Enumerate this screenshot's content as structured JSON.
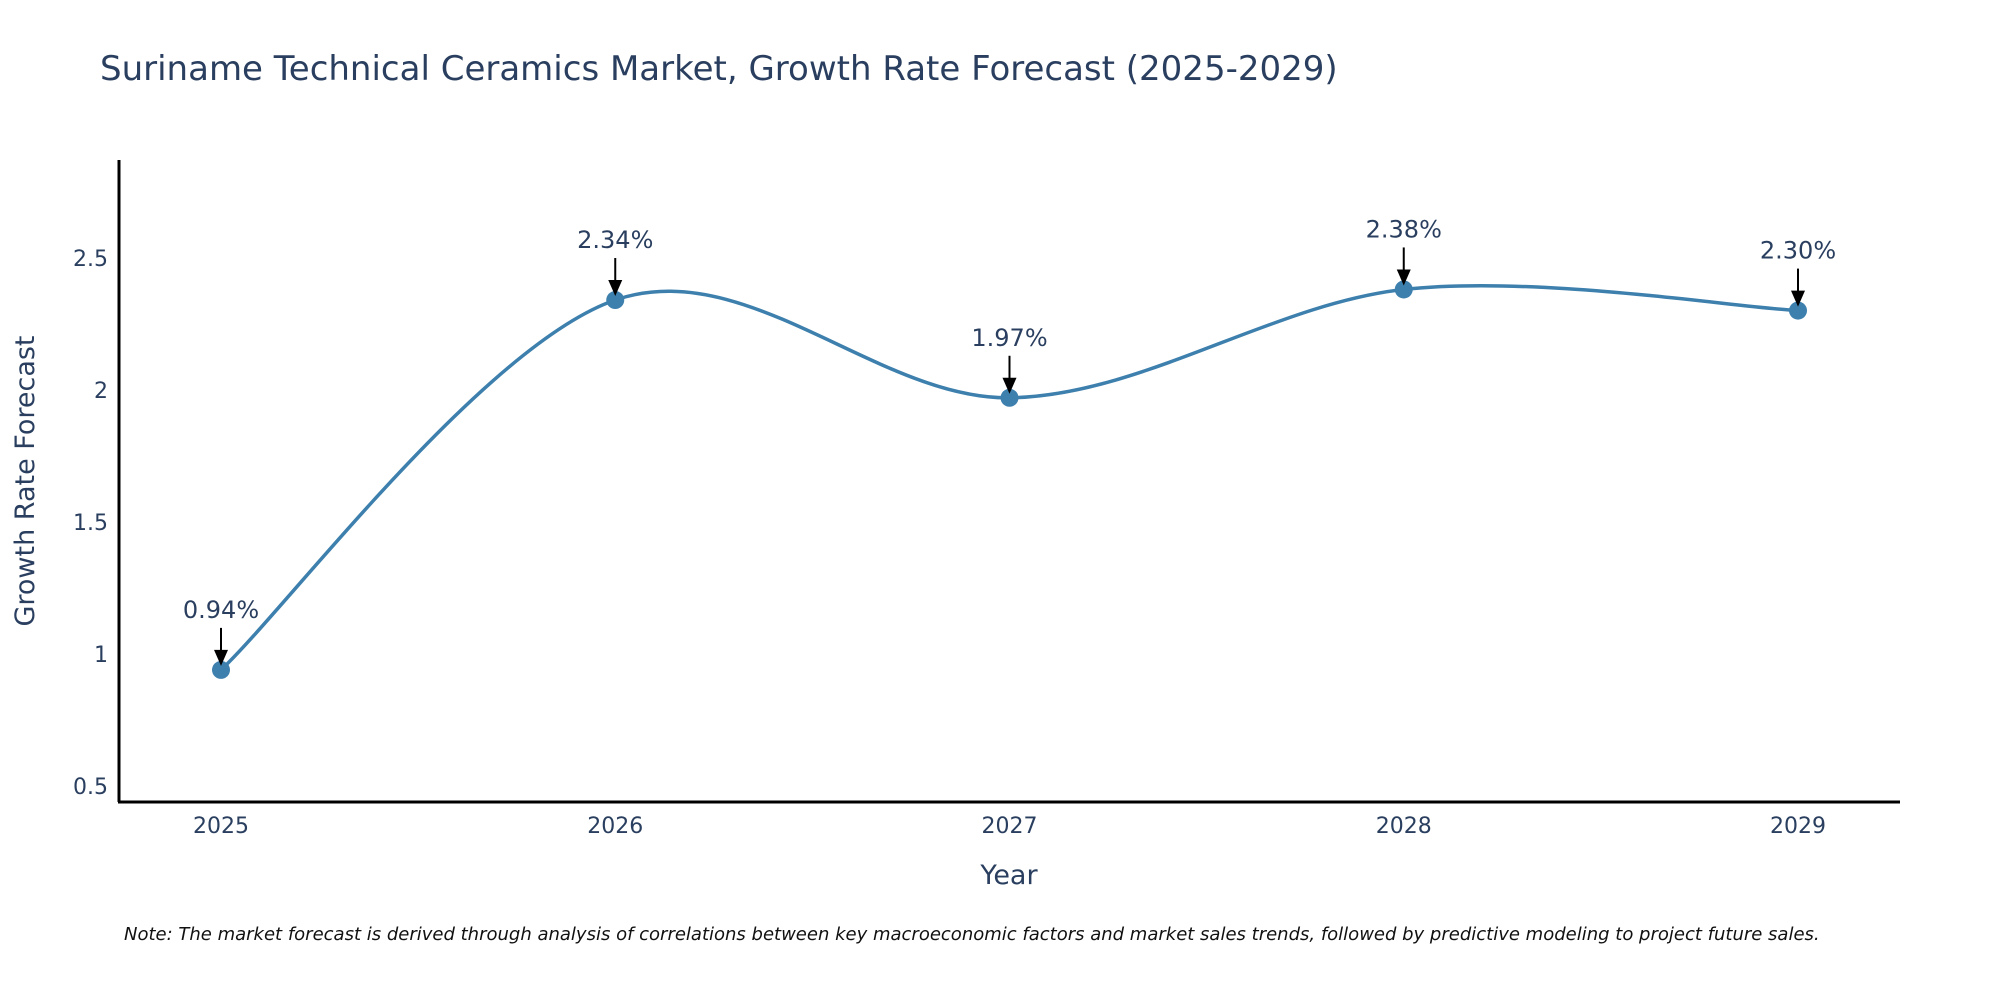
{
  "chart_data": {
    "type": "line",
    "title": "Suriname Technical Ceramics Market, Growth Rate Forecast (2025-2029)",
    "xlabel": "Year",
    "ylabel": "Growth Rate Forecast",
    "categories": [
      "2025",
      "2026",
      "2027",
      "2028",
      "2029"
    ],
    "series": [
      {
        "name": "Growth Rate Forecast",
        "values": [
          0.94,
          2.34,
          1.97,
          2.38,
          2.3
        ],
        "labels": [
          "0.94%",
          "2.34%",
          "1.97%",
          "2.38%",
          "2.30%"
        ],
        "color": "#3d7fad"
      }
    ],
    "ylim": [
      0.44,
      2.87
    ],
    "yticks": [
      0.5,
      1,
      1.5,
      2,
      2.5
    ],
    "ytick_labels": [
      "0.5",
      "1",
      "1.5",
      "2",
      "2.5"
    ],
    "grid": false,
    "legend": "none",
    "note": "Note: The market forecast is derived through analysis of correlations between key macroeconomic factors and market sales trends, followed by predictive modeling to project future sales."
  },
  "colors": {
    "line": "#3d7fad",
    "marker": "#3d7fad",
    "axis": "#000000",
    "text": "#2a3f5f",
    "arrow": "#000000"
  }
}
